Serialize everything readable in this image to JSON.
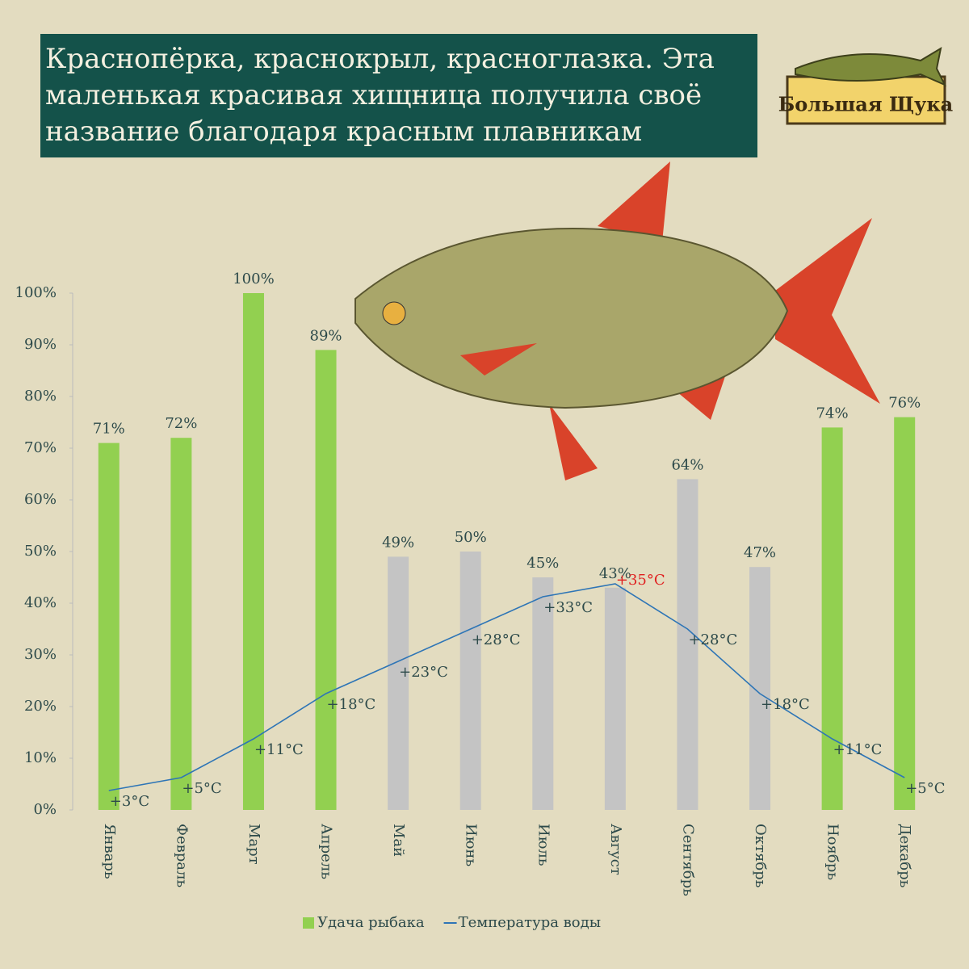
{
  "logo": "Большая Щука",
  "chart_data": {
    "type": "bar",
    "title": [
      "Краснопёрка, краснокрыл, красноглазка. Эта",
      "маленькая красивая хищница получила своё",
      "название благодаря красным плавникам"
    ],
    "categories": [
      "Январь",
      "Февраль",
      "Март",
      "Апрель",
      "Май",
      "Июнь",
      "Июль",
      "Август",
      "Сентябрь",
      "Октябрь",
      "Ноябрь",
      "Декабрь"
    ],
    "series": [
      {
        "name": "Удача рыбака",
        "color": "#92d050",
        "colors": [
          "#92d050",
          "#92d050",
          "#92d050",
          "#92d050",
          "#c4c4c4",
          "#c4c4c4",
          "#c4c4c4",
          "#c4c4c4",
          "#c4c4c4",
          "#c4c4c4",
          "#92d050",
          "#92d050"
        ],
        "values": [
          71,
          72,
          100,
          89,
          49,
          50,
          45,
          43,
          64,
          47,
          74,
          76
        ],
        "value_labels": [
          "71%",
          "72%",
          "100%",
          "89%",
          "49%",
          "50%",
          "45%",
          "43%",
          "64%",
          "47%",
          "74%",
          "76%"
        ]
      },
      {
        "name": "Температура воды",
        "color": "#2e75b6",
        "type": "line",
        "axis": "y2",
        "values": [
          3,
          5,
          11,
          18,
          23,
          28,
          33,
          35,
          28,
          18,
          11,
          5
        ],
        "value_labels": [
          "+3°C",
          "+5°C",
          "+11°C",
          "+18°C",
          "+23°C",
          "+28°C",
          "+33°C",
          "+35°C",
          "+28°C",
          "+18°C",
          "+11°C",
          "+5°C"
        ],
        "value_label_colors": [
          "#2d4a4a",
          "#2d4a4a",
          "#2d4a4a",
          "#2d4a4a",
          "#2d4a4a",
          "#2d4a4a",
          "#2d4a4a",
          "#e02020",
          "#2d4a4a",
          "#2d4a4a",
          "#2d4a4a",
          "#2d4a4a"
        ]
      }
    ],
    "ylim": [
      0,
      100
    ],
    "yticks": [
      {
        "value": 0,
        "label": "0%"
      },
      {
        "value": 10,
        "label": "10%"
      },
      {
        "value": 20,
        "label": "20%"
      },
      {
        "value": 30,
        "label": "30%"
      },
      {
        "value": 40,
        "label": "40%"
      },
      {
        "value": 50,
        "label": "50%"
      },
      {
        "value": 60,
        "label": "60%"
      },
      {
        "value": 70,
        "label": "70%"
      },
      {
        "value": 80,
        "label": "80%"
      },
      {
        "value": 90,
        "label": "90%"
      },
      {
        "value": 100,
        "label": "100%"
      }
    ],
    "y2lim": [
      0,
      80
    ],
    "legend": "bottom"
  }
}
